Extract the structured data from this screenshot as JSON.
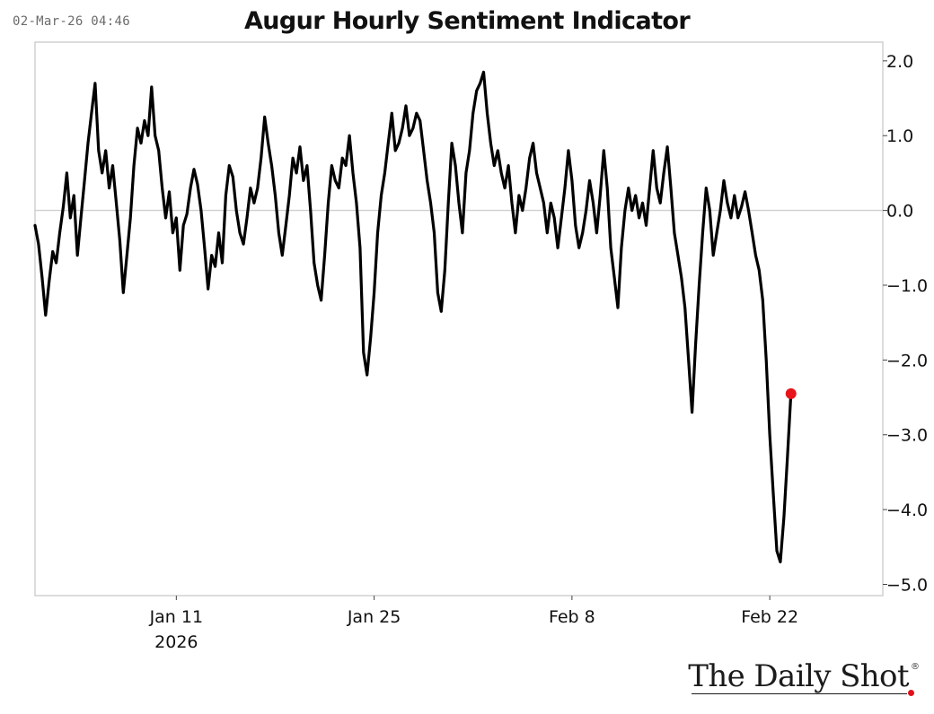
{
  "header": {
    "timestamp": "02-Mar-26 04:46",
    "title": "Augur Hourly Sentiment Indicator"
  },
  "logo": {
    "text": "The Daily Shot",
    "mark": "®"
  },
  "colors": {
    "line": "#000000",
    "last_point": "#e8141b",
    "zero_line": "#cfcfcf",
    "frame": "#c8c8c8"
  },
  "chart_data": {
    "type": "line",
    "title": "Augur Hourly Sentiment Indicator",
    "xlabel": "",
    "ylabel": "",
    "x_range": [
      "2026-01-01",
      "2026-03-02"
    ],
    "ylim": [
      -5.15,
      2.25
    ],
    "y_axis_side": "right",
    "yticks": [
      2.0,
      1.0,
      0.0,
      -1.0,
      -2.0,
      -3.0,
      -4.0,
      -5.0
    ],
    "ytick_labels": [
      "2.0",
      "1.0",
      "0.0",
      "−1.0",
      "−2.0",
      "−3.0",
      "−4.0",
      "−5.0"
    ],
    "xticks": [
      {
        "date": "2026-01-11",
        "label": "Jan 11",
        "sublabel": "2026"
      },
      {
        "date": "2026-01-25",
        "label": "Jan 25",
        "sublabel": ""
      },
      {
        "date": "2026-02-08",
        "label": "Feb 8",
        "sublabel": ""
      },
      {
        "date": "2026-02-22",
        "label": "Feb 22",
        "sublabel": ""
      }
    ],
    "grid": false,
    "reference_line": 0.0,
    "series": [
      {
        "values": [
          [
            "2026-01-01 00:00",
            -0.2
          ],
          [
            "2026-01-01 06:00",
            -0.45
          ],
          [
            "2026-01-01 12:00",
            -0.9
          ],
          [
            "2026-01-01 18:00",
            -1.4
          ],
          [
            "2026-01-02 00:00",
            -0.95
          ],
          [
            "2026-01-02 06:00",
            -0.55
          ],
          [
            "2026-01-02 12:00",
            -0.7
          ],
          [
            "2026-01-02 18:00",
            -0.3
          ],
          [
            "2026-01-03 00:00",
            0.05
          ],
          [
            "2026-01-03 06:00",
            0.5
          ],
          [
            "2026-01-03 12:00",
            -0.1
          ],
          [
            "2026-01-03 18:00",
            0.2
          ],
          [
            "2026-01-04 00:00",
            -0.6
          ],
          [
            "2026-01-04 06:00",
            -0.1
          ],
          [
            "2026-01-04 12:00",
            0.4
          ],
          [
            "2026-01-04 18:00",
            0.9
          ],
          [
            "2026-01-05 00:00",
            1.3
          ],
          [
            "2026-01-05 06:00",
            1.7
          ],
          [
            "2026-01-05 12:00",
            0.8
          ],
          [
            "2026-01-05 18:00",
            0.5
          ],
          [
            "2026-01-06 00:00",
            0.8
          ],
          [
            "2026-01-06 06:00",
            0.3
          ],
          [
            "2026-01-06 12:00",
            0.6
          ],
          [
            "2026-01-06 18:00",
            0.1
          ],
          [
            "2026-01-07 00:00",
            -0.4
          ],
          [
            "2026-01-07 06:00",
            -1.1
          ],
          [
            "2026-01-07 12:00",
            -0.6
          ],
          [
            "2026-01-07 18:00",
            -0.1
          ],
          [
            "2026-01-08 00:00",
            0.6
          ],
          [
            "2026-01-08 06:00",
            1.1
          ],
          [
            "2026-01-08 12:00",
            0.9
          ],
          [
            "2026-01-08 18:00",
            1.2
          ],
          [
            "2026-01-09 00:00",
            1.0
          ],
          [
            "2026-01-09 06:00",
            1.65
          ],
          [
            "2026-01-09 12:00",
            1.0
          ],
          [
            "2026-01-09 18:00",
            0.8
          ],
          [
            "2026-01-10 00:00",
            0.3
          ],
          [
            "2026-01-10 06:00",
            -0.1
          ],
          [
            "2026-01-10 12:00",
            0.25
          ],
          [
            "2026-01-10 18:00",
            -0.3
          ],
          [
            "2026-01-11 00:00",
            -0.1
          ],
          [
            "2026-01-11 06:00",
            -0.8
          ],
          [
            "2026-01-11 12:00",
            -0.2
          ],
          [
            "2026-01-11 18:00",
            -0.05
          ],
          [
            "2026-01-12 00:00",
            0.3
          ],
          [
            "2026-01-12 06:00",
            0.55
          ],
          [
            "2026-01-12 12:00",
            0.35
          ],
          [
            "2026-01-12 18:00",
            0.0
          ],
          [
            "2026-01-13 00:00",
            -0.5
          ],
          [
            "2026-01-13 06:00",
            -1.05
          ],
          [
            "2026-01-13 12:00",
            -0.6
          ],
          [
            "2026-01-13 18:00",
            -0.75
          ],
          [
            "2026-01-14 00:00",
            -0.3
          ],
          [
            "2026-01-14 06:00",
            -0.7
          ],
          [
            "2026-01-14 12:00",
            0.2
          ],
          [
            "2026-01-14 18:00",
            0.6
          ],
          [
            "2026-01-15 00:00",
            0.45
          ],
          [
            "2026-01-15 06:00",
            0.0
          ],
          [
            "2026-01-15 12:00",
            -0.3
          ],
          [
            "2026-01-15 18:00",
            -0.45
          ],
          [
            "2026-01-16 00:00",
            -0.1
          ],
          [
            "2026-01-16 06:00",
            0.3
          ],
          [
            "2026-01-16 12:00",
            0.1
          ],
          [
            "2026-01-16 18:00",
            0.3
          ],
          [
            "2026-01-17 00:00",
            0.7
          ],
          [
            "2026-01-17 06:00",
            1.25
          ],
          [
            "2026-01-17 12:00",
            0.9
          ],
          [
            "2026-01-17 18:00",
            0.6
          ],
          [
            "2026-01-18 00:00",
            0.2
          ],
          [
            "2026-01-18 06:00",
            -0.3
          ],
          [
            "2026-01-18 12:00",
            -0.6
          ],
          [
            "2026-01-18 18:00",
            -0.2
          ],
          [
            "2026-01-19 00:00",
            0.2
          ],
          [
            "2026-01-19 06:00",
            0.7
          ],
          [
            "2026-01-19 12:00",
            0.5
          ],
          [
            "2026-01-19 18:00",
            0.85
          ],
          [
            "2026-01-20 00:00",
            0.4
          ],
          [
            "2026-01-20 06:00",
            0.6
          ],
          [
            "2026-01-20 12:00",
            0.0
          ],
          [
            "2026-01-20 18:00",
            -0.7
          ],
          [
            "2026-01-21 00:00",
            -1.0
          ],
          [
            "2026-01-21 06:00",
            -1.2
          ],
          [
            "2026-01-21 12:00",
            -0.6
          ],
          [
            "2026-01-21 18:00",
            0.1
          ],
          [
            "2026-01-22 00:00",
            0.6
          ],
          [
            "2026-01-22 06:00",
            0.4
          ],
          [
            "2026-01-22 12:00",
            0.3
          ],
          [
            "2026-01-22 18:00",
            0.7
          ],
          [
            "2026-01-23 00:00",
            0.6
          ],
          [
            "2026-01-23 06:00",
            1.0
          ],
          [
            "2026-01-23 12:00",
            0.5
          ],
          [
            "2026-01-23 18:00",
            0.1
          ],
          [
            "2026-01-24 00:00",
            -0.5
          ],
          [
            "2026-01-24 06:00",
            -1.9
          ],
          [
            "2026-01-24 12:00",
            -2.2
          ],
          [
            "2026-01-24 18:00",
            -1.7
          ],
          [
            "2026-01-25 00:00",
            -1.1
          ],
          [
            "2026-01-25 06:00",
            -0.3
          ],
          [
            "2026-01-25 12:00",
            0.2
          ],
          [
            "2026-01-25 18:00",
            0.5
          ],
          [
            "2026-01-26 00:00",
            0.9
          ],
          [
            "2026-01-26 06:00",
            1.3
          ],
          [
            "2026-01-26 12:00",
            0.8
          ],
          [
            "2026-01-26 18:00",
            0.9
          ],
          [
            "2026-01-27 00:00",
            1.1
          ],
          [
            "2026-01-27 06:00",
            1.4
          ],
          [
            "2026-01-27 12:00",
            1.0
          ],
          [
            "2026-01-27 18:00",
            1.1
          ],
          [
            "2026-01-28 00:00",
            1.3
          ],
          [
            "2026-01-28 06:00",
            1.2
          ],
          [
            "2026-01-28 12:00",
            0.8
          ],
          [
            "2026-01-28 18:00",
            0.4
          ],
          [
            "2026-01-29 00:00",
            0.1
          ],
          [
            "2026-01-29 06:00",
            -0.3
          ],
          [
            "2026-01-29 12:00",
            -1.1
          ],
          [
            "2026-01-29 18:00",
            -1.35
          ],
          [
            "2026-01-30 00:00",
            -0.8
          ],
          [
            "2026-01-30 06:00",
            0.1
          ],
          [
            "2026-01-30 12:00",
            0.9
          ],
          [
            "2026-01-30 18:00",
            0.6
          ],
          [
            "2026-01-31 00:00",
            0.1
          ],
          [
            "2026-01-31 06:00",
            -0.3
          ],
          [
            "2026-01-31 12:00",
            0.5
          ],
          [
            "2026-01-31 18:00",
            0.8
          ],
          [
            "2026-02-01 00:00",
            1.3
          ],
          [
            "2026-02-01 06:00",
            1.6
          ],
          [
            "2026-02-01 12:00",
            1.7
          ],
          [
            "2026-02-01 18:00",
            1.85
          ],
          [
            "2026-02-02 00:00",
            1.3
          ],
          [
            "2026-02-02 06:00",
            0.9
          ],
          [
            "2026-02-02 12:00",
            0.6
          ],
          [
            "2026-02-02 18:00",
            0.8
          ],
          [
            "2026-02-03 00:00",
            0.5
          ],
          [
            "2026-02-03 06:00",
            0.3
          ],
          [
            "2026-02-03 12:00",
            0.6
          ],
          [
            "2026-02-03 18:00",
            0.1
          ],
          [
            "2026-02-04 00:00",
            -0.3
          ],
          [
            "2026-02-04 06:00",
            0.2
          ],
          [
            "2026-02-04 12:00",
            0.0
          ],
          [
            "2026-02-04 18:00",
            0.3
          ],
          [
            "2026-02-05 00:00",
            0.7
          ],
          [
            "2026-02-05 06:00",
            0.9
          ],
          [
            "2026-02-05 12:00",
            0.5
          ],
          [
            "2026-02-05 18:00",
            0.3
          ],
          [
            "2026-02-06 00:00",
            0.1
          ],
          [
            "2026-02-06 06:00",
            -0.3
          ],
          [
            "2026-02-06 12:00",
            0.1
          ],
          [
            "2026-02-06 18:00",
            -0.1
          ],
          [
            "2026-02-07 00:00",
            -0.5
          ],
          [
            "2026-02-07 06:00",
            -0.1
          ],
          [
            "2026-02-07 12:00",
            0.3
          ],
          [
            "2026-02-07 18:00",
            0.8
          ],
          [
            "2026-02-08 00:00",
            0.4
          ],
          [
            "2026-02-08 06:00",
            -0.2
          ],
          [
            "2026-02-08 12:00",
            -0.5
          ],
          [
            "2026-02-08 18:00",
            -0.3
          ],
          [
            "2026-02-09 00:00",
            0.0
          ],
          [
            "2026-02-09 06:00",
            0.4
          ],
          [
            "2026-02-09 12:00",
            0.1
          ],
          [
            "2026-02-09 18:00",
            -0.3
          ],
          [
            "2026-02-10 00:00",
            0.2
          ],
          [
            "2026-02-10 06:00",
            0.8
          ],
          [
            "2026-02-10 12:00",
            0.3
          ],
          [
            "2026-02-10 18:00",
            -0.5
          ],
          [
            "2026-02-11 00:00",
            -0.9
          ],
          [
            "2026-02-11 06:00",
            -1.3
          ],
          [
            "2026-02-11 12:00",
            -0.5
          ],
          [
            "2026-02-11 18:00",
            0.0
          ],
          [
            "2026-02-12 00:00",
            0.3
          ],
          [
            "2026-02-12 06:00",
            0.0
          ],
          [
            "2026-02-12 12:00",
            0.2
          ],
          [
            "2026-02-12 18:00",
            -0.1
          ],
          [
            "2026-02-13 00:00",
            0.1
          ],
          [
            "2026-02-13 06:00",
            -0.2
          ],
          [
            "2026-02-13 12:00",
            0.3
          ],
          [
            "2026-02-13 18:00",
            0.8
          ],
          [
            "2026-02-14 00:00",
            0.3
          ],
          [
            "2026-02-14 06:00",
            0.1
          ],
          [
            "2026-02-14 12:00",
            0.5
          ],
          [
            "2026-02-14 18:00",
            0.85
          ],
          [
            "2026-02-15 00:00",
            0.3
          ],
          [
            "2026-02-15 06:00",
            -0.3
          ],
          [
            "2026-02-15 12:00",
            -0.6
          ],
          [
            "2026-02-15 18:00",
            -0.9
          ],
          [
            "2026-02-16 00:00",
            -1.3
          ],
          [
            "2026-02-16 06:00",
            -2.0
          ],
          [
            "2026-02-16 12:00",
            -2.7
          ],
          [
            "2026-02-16 18:00",
            -1.8
          ],
          [
            "2026-02-17 00:00",
            -1.0
          ],
          [
            "2026-02-17 06:00",
            -0.3
          ],
          [
            "2026-02-17 12:00",
            0.3
          ],
          [
            "2026-02-17 18:00",
            0.0
          ],
          [
            "2026-02-18 00:00",
            -0.6
          ],
          [
            "2026-02-18 06:00",
            -0.3
          ],
          [
            "2026-02-18 12:00",
            0.0
          ],
          [
            "2026-02-18 18:00",
            0.4
          ],
          [
            "2026-02-19 00:00",
            0.1
          ],
          [
            "2026-02-19 06:00",
            -0.1
          ],
          [
            "2026-02-19 12:00",
            0.2
          ],
          [
            "2026-02-19 18:00",
            -0.1
          ],
          [
            "2026-02-20 00:00",
            0.05
          ],
          [
            "2026-02-20 06:00",
            0.25
          ],
          [
            "2026-02-20 12:00",
            0.0
          ],
          [
            "2026-02-20 18:00",
            -0.3
          ],
          [
            "2026-02-21 00:00",
            -0.6
          ],
          [
            "2026-02-21 06:00",
            -0.8
          ],
          [
            "2026-02-21 12:00",
            -1.2
          ],
          [
            "2026-02-21 18:00",
            -2.0
          ],
          [
            "2026-02-22 00:00",
            -3.0
          ],
          [
            "2026-02-22 06:00",
            -3.8
          ],
          [
            "2026-02-22 12:00",
            -4.55
          ],
          [
            "2026-02-22 18:00",
            -4.7
          ],
          [
            "2026-02-23 00:00",
            -4.1
          ],
          [
            "2026-02-23 06:00",
            -3.3
          ],
          [
            "2026-02-23 12:00",
            -2.45
          ]
        ]
      }
    ],
    "last_point": {
      "date": "2026-02-23 12:00",
      "value": -2.45
    }
  }
}
